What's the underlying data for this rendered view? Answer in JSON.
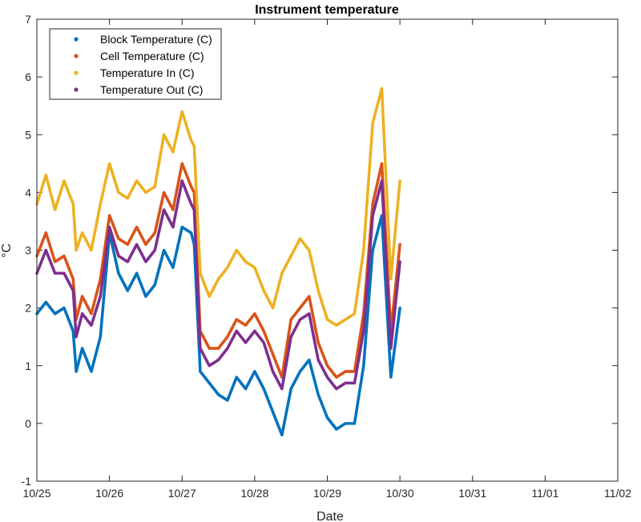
{
  "chart_data": {
    "type": "scatter",
    "title": "Instrument temperature",
    "xlabel": "Date",
    "ylabel": "°C",
    "xlim": [
      "10/25",
      "11/02"
    ],
    "ylim": [
      -1,
      7
    ],
    "x_tick_labels": [
      "10/25",
      "10/26",
      "10/27",
      "10/28",
      "10/29",
      "10/30",
      "10/31",
      "11/01",
      "11/02"
    ],
    "y_tick_labels": [
      "-1",
      "0",
      "1",
      "2",
      "3",
      "4",
      "5",
      "6",
      "7"
    ],
    "legend_position": "top-left",
    "series": [
      {
        "name": "Block Temperature (C)",
        "color": "#0072BD",
        "x": [
          "10/25 00:00",
          "10/25 03:00",
          "10/25 06:00",
          "10/25 09:00",
          "10/25 12:00",
          "10/25 13:00",
          "10/25 15:00",
          "10/25 18:00",
          "10/25 21:00",
          "10/26 00:00",
          "10/26 03:00",
          "10/26 06:00",
          "10/26 09:00",
          "10/26 12:00",
          "10/26 15:00",
          "10/26 18:00",
          "10/26 21:00",
          "10/27 00:00",
          "10/27 03:00",
          "10/27 04:00",
          "10/27 06:00",
          "10/27 09:00",
          "10/27 12:00",
          "10/27 15:00",
          "10/27 18:00",
          "10/27 21:00",
          "10/28 00:00",
          "10/28 03:00",
          "10/28 06:00",
          "10/28 09:00",
          "10/28 12:00",
          "10/28 15:00",
          "10/28 18:00",
          "10/28 21:00",
          "10/29 00:00",
          "10/29 03:00",
          "10/29 06:00",
          "10/29 09:00",
          "10/29 12:00",
          "10/29 15:00",
          "10/29 18:00",
          "10/29 21:00",
          "10/30 00:00"
        ],
        "y": [
          1.9,
          2.1,
          1.9,
          2.0,
          1.6,
          0.9,
          1.3,
          0.9,
          1.5,
          3.3,
          2.6,
          2.3,
          2.6,
          2.2,
          2.4,
          3.0,
          2.7,
          3.4,
          3.3,
          3.1,
          0.9,
          0.7,
          0.5,
          0.4,
          0.8,
          0.6,
          0.9,
          0.6,
          0.2,
          -0.2,
          0.6,
          0.9,
          1.1,
          0.5,
          0.1,
          -0.1,
          0.0,
          0.0,
          1.0,
          3.0,
          3.6,
          0.8,
          2.0
        ]
      },
      {
        "name": "Cell Temperature (C)",
        "color": "#D95319",
        "x": [
          "10/25 00:00",
          "10/25 03:00",
          "10/25 06:00",
          "10/25 09:00",
          "10/25 12:00",
          "10/25 13:00",
          "10/25 15:00",
          "10/25 18:00",
          "10/25 21:00",
          "10/26 00:00",
          "10/26 03:00",
          "10/26 06:00",
          "10/26 09:00",
          "10/26 12:00",
          "10/26 15:00",
          "10/26 18:00",
          "10/26 21:00",
          "10/27 00:00",
          "10/27 03:00",
          "10/27 04:00",
          "10/27 06:00",
          "10/27 09:00",
          "10/27 12:00",
          "10/27 15:00",
          "10/27 18:00",
          "10/27 21:00",
          "10/28 00:00",
          "10/28 03:00",
          "10/28 06:00",
          "10/28 09:00",
          "10/28 12:00",
          "10/28 15:00",
          "10/28 18:00",
          "10/28 21:00",
          "10/29 00:00",
          "10/29 03:00",
          "10/29 06:00",
          "10/29 09:00",
          "10/29 12:00",
          "10/29 15:00",
          "10/29 18:00",
          "10/29 21:00",
          "10/30 00:00"
        ],
        "y": [
          2.9,
          3.3,
          2.8,
          2.9,
          2.5,
          1.8,
          2.2,
          1.9,
          2.5,
          3.6,
          3.2,
          3.1,
          3.4,
          3.1,
          3.3,
          4.0,
          3.7,
          4.5,
          4.1,
          4.0,
          1.6,
          1.3,
          1.3,
          1.5,
          1.8,
          1.7,
          1.9,
          1.6,
          1.2,
          0.8,
          1.8,
          2.0,
          2.2,
          1.4,
          1.0,
          0.8,
          0.9,
          0.9,
          1.9,
          3.8,
          4.5,
          1.6,
          3.1
        ]
      },
      {
        "name": "Temperature In (C)",
        "color": "#EDB120",
        "x": [
          "10/25 00:00",
          "10/25 03:00",
          "10/25 06:00",
          "10/25 09:00",
          "10/25 12:00",
          "10/25 13:00",
          "10/25 15:00",
          "10/25 18:00",
          "10/25 21:00",
          "10/26 00:00",
          "10/26 03:00",
          "10/26 06:00",
          "10/26 09:00",
          "10/26 12:00",
          "10/26 15:00",
          "10/26 18:00",
          "10/26 21:00",
          "10/27 00:00",
          "10/27 03:00",
          "10/27 04:00",
          "10/27 06:00",
          "10/27 09:00",
          "10/27 12:00",
          "10/27 15:00",
          "10/27 18:00",
          "10/27 21:00",
          "10/28 00:00",
          "10/28 03:00",
          "10/28 06:00",
          "10/28 09:00",
          "10/28 12:00",
          "10/28 15:00",
          "10/28 18:00",
          "10/28 21:00",
          "10/29 00:00",
          "10/29 03:00",
          "10/29 06:00",
          "10/29 09:00",
          "10/29 12:00",
          "10/29 15:00",
          "10/29 18:00",
          "10/29 21:00",
          "10/30 00:00"
        ],
        "y": [
          3.8,
          4.3,
          3.7,
          4.2,
          3.8,
          3.0,
          3.3,
          3.0,
          3.8,
          4.5,
          4.0,
          3.9,
          4.2,
          4.0,
          4.1,
          5.0,
          4.7,
          5.4,
          4.9,
          4.8,
          2.6,
          2.2,
          2.5,
          2.7,
          3.0,
          2.8,
          2.7,
          2.3,
          2.0,
          2.6,
          2.9,
          3.2,
          3.0,
          2.3,
          1.8,
          1.7,
          1.8,
          1.9,
          3.0,
          5.2,
          5.8,
          2.5,
          4.2
        ]
      },
      {
        "name": "Temperature Out (C)",
        "color": "#7E2F8E",
        "x": [
          "10/25 00:00",
          "10/25 03:00",
          "10/25 06:00",
          "10/25 09:00",
          "10/25 12:00",
          "10/25 13:00",
          "10/25 15:00",
          "10/25 18:00",
          "10/25 21:00",
          "10/26 00:00",
          "10/26 03:00",
          "10/26 06:00",
          "10/26 09:00",
          "10/26 12:00",
          "10/26 15:00",
          "10/26 18:00",
          "10/26 21:00",
          "10/27 00:00",
          "10/27 03:00",
          "10/27 04:00",
          "10/27 06:00",
          "10/27 09:00",
          "10/27 12:00",
          "10/27 15:00",
          "10/27 18:00",
          "10/27 21:00",
          "10/28 00:00",
          "10/28 03:00",
          "10/28 06:00",
          "10/28 09:00",
          "10/28 12:00",
          "10/28 15:00",
          "10/28 18:00",
          "10/28 21:00",
          "10/29 00:00",
          "10/29 03:00",
          "10/29 06:00",
          "10/29 09:00",
          "10/29 12:00",
          "10/29 15:00",
          "10/29 18:00",
          "10/29 21:00",
          "10/30 00:00"
        ],
        "y": [
          2.6,
          3.0,
          2.6,
          2.6,
          2.3,
          1.5,
          1.9,
          1.7,
          2.2,
          3.4,
          2.9,
          2.8,
          3.1,
          2.8,
          3.0,
          3.7,
          3.4,
          4.2,
          3.8,
          3.7,
          1.3,
          1.0,
          1.1,
          1.3,
          1.6,
          1.4,
          1.6,
          1.4,
          0.9,
          0.6,
          1.5,
          1.8,
          1.9,
          1.1,
          0.8,
          0.6,
          0.7,
          0.7,
          1.6,
          3.6,
          4.2,
          1.3,
          2.8
        ]
      }
    ]
  }
}
